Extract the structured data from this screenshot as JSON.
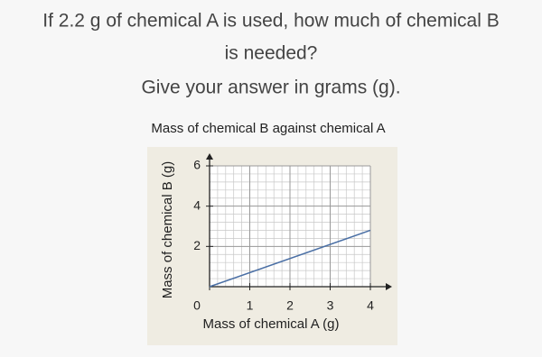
{
  "question": {
    "line1": "If 2.2 g of chemical A is used, how much of chemical B",
    "line2": "is needed?",
    "line3": "Give your answer in grams (g)."
  },
  "chart_data": {
    "type": "line",
    "title": "Mass of chemical B against chemical A",
    "x_label": "Mass of chemical A (g)",
    "y_label": "Mass of chemical B (g)",
    "x": [
      0,
      4
    ],
    "series": [
      {
        "color": "#4a6fa5",
        "values": [
          0,
          2.8
        ]
      }
    ],
    "xlim": [
      0,
      4
    ],
    "ylim": [
      0,
      6
    ],
    "xticks": [
      0,
      1,
      2,
      3,
      4
    ],
    "yticks": [
      2,
      4,
      6
    ],
    "grid": true
  }
}
